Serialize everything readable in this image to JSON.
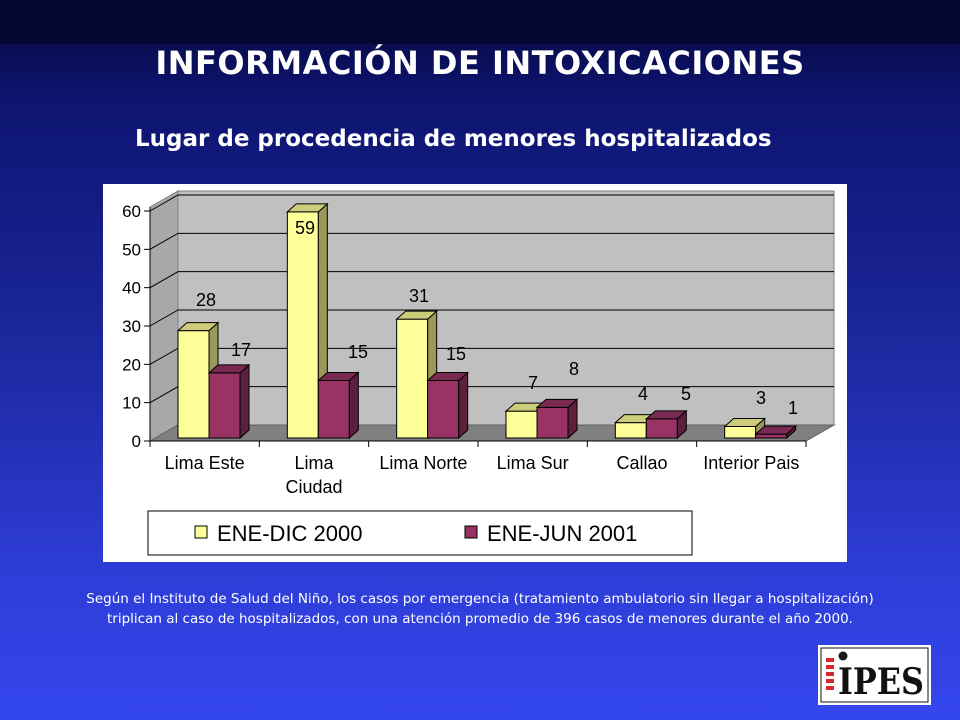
{
  "page": {
    "title": "INFORMACIÓN DE INTOXICACIONES",
    "subtitle": "Lugar de procedencia de menores hospitalizados",
    "note_line1": "Según el Instituto de Salud del Niño, los casos por emergencia (tratamiento ambulatorio sin llegar a hospitalización)",
    "note_line2": "triplican al caso de hospitalizados, con una atención  promedio de 396 casos de menores durante el año 2000.",
    "logo_text": "IPES"
  },
  "chart_data": {
    "type": "bar",
    "style": "3d-clustered-column",
    "categories": [
      [
        "Lima Este"
      ],
      [
        "Lima",
        "Ciudad"
      ],
      [
        "Lima Norte"
      ],
      [
        "Lima Sur"
      ],
      [
        "Callao"
      ],
      [
        "Interior Pais"
      ]
    ],
    "series": [
      {
        "name": "ENE-DIC 2000",
        "values": [
          28,
          59,
          31,
          7,
          4,
          3
        ],
        "color": "#ffff99"
      },
      {
        "name": "ENE-JUN 2001",
        "values": [
          17,
          15,
          15,
          8,
          5,
          1
        ],
        "color": "#993366"
      }
    ],
    "yticks": [
      "0",
      "10",
      "20",
      "30",
      "40",
      "50",
      "60"
    ],
    "ylim": [
      0,
      60
    ],
    "grid": true,
    "legend_position": "bottom",
    "wall_color": "#c0c0c0",
    "floor_color": "#808080"
  }
}
